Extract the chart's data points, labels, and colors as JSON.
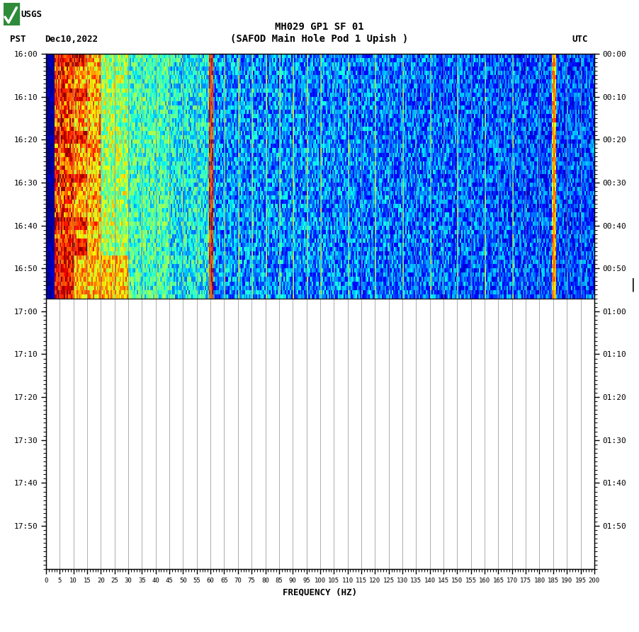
{
  "title_line1": "MH029 GP1 SF 01",
  "title_line2": "(SAFOD Main Hole Pod 1 Upish )",
  "left_label": "PST",
  "date_label": "Dec10,2022",
  "right_label": "UTC",
  "xlabel": "FREQUENCY (HZ)",
  "freq_min": 0,
  "freq_max": 200,
  "freq_ticks": [
    0,
    5,
    10,
    15,
    20,
    25,
    30,
    35,
    40,
    45,
    50,
    55,
    60,
    65,
    70,
    75,
    80,
    85,
    90,
    95,
    100,
    105,
    110,
    115,
    120,
    125,
    130,
    135,
    140,
    145,
    150,
    155,
    160,
    165,
    170,
    175,
    180,
    185,
    190,
    195,
    200
  ],
  "pst_yticks": [
    "16:00",
    "16:10",
    "16:20",
    "16:30",
    "16:40",
    "16:50",
    "17:00",
    "17:10",
    "17:20",
    "17:30",
    "17:40",
    "17:50"
  ],
  "utc_yticks": [
    "00:00",
    "00:10",
    "00:20",
    "00:30",
    "00:40",
    "00:50",
    "01:00",
    "01:10",
    "01:20",
    "01:30",
    "01:40",
    "01:50"
  ],
  "background_color": "#ffffff",
  "spectrogram_colormap": "jet",
  "grid_color": "#909090",
  "tick_label_fontsize": 8,
  "label_fontsize": 9,
  "title_fontsize": 10,
  "active_minutes": 57,
  "total_minutes": 120
}
